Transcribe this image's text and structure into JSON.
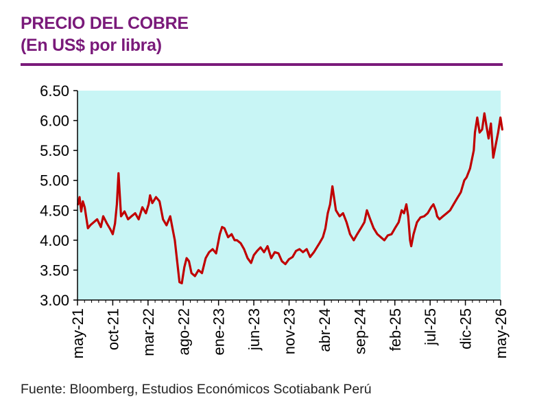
{
  "header": {
    "title": "PRECIO DEL COBRE",
    "subtitle": "(En US$ por libra)"
  },
  "source": "Fuente: Bloomberg, Estudios Económicos Scotiabank Perú",
  "colors": {
    "title": "#7a1a7a",
    "line": "#c00000",
    "plot_bg": "#c8f5f5",
    "axis": "#000000"
  },
  "chart_data": {
    "type": "line",
    "title": "PRECIO DEL COBRE",
    "subtitle": "(En US$ por libra)",
    "ylim": [
      3.0,
      6.5
    ],
    "yticks": [
      "3.00",
      "3.50",
      "4.00",
      "4.50",
      "5.00",
      "5.50",
      "6.00",
      "6.50"
    ],
    "xticks": [
      "may-21",
      "oct-21",
      "mar-22",
      "ago-22",
      "ene-23",
      "jun-23",
      "nov-23",
      "abr-24",
      "sep-24",
      "feb-25",
      "jul-25",
      "dic-25",
      "may-26"
    ],
    "grid": false,
    "series": [
      {
        "x": [
          "2021-05-03",
          "2021-05-10",
          "2021-05-17",
          "2021-05-24",
          "2021-06-01",
          "2021-06-15",
          "2021-06-25",
          "2021-07-10",
          "2021-07-25",
          "2021-08-10",
          "2021-08-20",
          "2021-09-05",
          "2021-09-20",
          "2021-09-30",
          "2021-10-10",
          "2021-10-18",
          "2021-10-25",
          "2021-11-05",
          "2021-11-20",
          "2021-12-05",
          "2021-12-20",
          "2022-01-05",
          "2022-01-20",
          "2022-02-05",
          "2022-02-20",
          "2022-03-04",
          "2022-03-10",
          "2022-03-20",
          "2022-04-05",
          "2022-04-20",
          "2022-05-05",
          "2022-05-20",
          "2022-06-05",
          "2022-06-15",
          "2022-06-25",
          "2022-07-05",
          "2022-07-15",
          "2022-07-25",
          "2022-08-05",
          "2022-08-15",
          "2022-08-25",
          "2022-09-05",
          "2022-09-20",
          "2022-10-05",
          "2022-10-20",
          "2022-11-05",
          "2022-11-20",
          "2022-12-05",
          "2022-12-20",
          "2023-01-05",
          "2023-01-15",
          "2023-01-25",
          "2023-02-10",
          "2023-02-25",
          "2023-03-10",
          "2023-03-20",
          "2023-04-05",
          "2023-04-20",
          "2023-05-05",
          "2023-05-20",
          "2023-06-01",
          "2023-06-15",
          "2023-06-30",
          "2023-07-15",
          "2023-07-30",
          "2023-08-15",
          "2023-08-30",
          "2023-09-15",
          "2023-09-30",
          "2023-10-15",
          "2023-10-30",
          "2023-11-15",
          "2023-11-30",
          "2023-12-15",
          "2023-12-30",
          "2024-01-15",
          "2024-01-30",
          "2024-02-15",
          "2024-02-28",
          "2024-03-10",
          "2024-03-25",
          "2024-04-05",
          "2024-04-15",
          "2024-04-25",
          "2024-05-05",
          "2024-05-20",
          "2024-06-05",
          "2024-06-20",
          "2024-07-05",
          "2024-07-20",
          "2024-08-05",
          "2024-08-20",
          "2024-09-05",
          "2024-09-20",
          "2024-10-01",
          "2024-10-15",
          "2024-10-30",
          "2024-11-15",
          "2024-11-30",
          "2024-12-15",
          "2024-12-30",
          "2025-01-15",
          "2025-01-30",
          "2025-02-15",
          "2025-02-28",
          "2025-03-10",
          "2025-03-20",
          "2025-03-28",
          "2025-04-05",
          "2025-04-10",
          "2025-04-20",
          "2025-05-05",
          "2025-05-20",
          "2025-06-05",
          "2025-06-20",
          "2025-07-05",
          "2025-07-15",
          "2025-07-25",
          "2025-07-31",
          "2025-08-10",
          "2025-08-25",
          "2025-09-10",
          "2025-09-25",
          "2025-10-10",
          "2025-10-25",
          "2025-11-10",
          "2025-11-25",
          "2025-12-05",
          "2025-12-20",
          "2026-01-05",
          "2026-01-10",
          "2026-01-20",
          "2026-01-30",
          "2026-02-10",
          "2026-02-20",
          "2026-03-01",
          "2026-03-10",
          "2026-03-20",
          "2026-03-30",
          "2026-04-10",
          "2026-04-20",
          "2026-04-30",
          "2026-05-08"
        ],
        "values": [
          4.6,
          4.72,
          4.48,
          4.65,
          4.55,
          4.2,
          4.25,
          4.3,
          4.35,
          4.22,
          4.4,
          4.28,
          4.18,
          4.1,
          4.28,
          4.6,
          5.12,
          4.4,
          4.48,
          4.35,
          4.4,
          4.45,
          4.35,
          4.55,
          4.45,
          4.6,
          4.75,
          4.62,
          4.72,
          4.65,
          4.35,
          4.25,
          4.4,
          4.2,
          4.0,
          3.65,
          3.3,
          3.28,
          3.55,
          3.7,
          3.65,
          3.45,
          3.4,
          3.5,
          3.45,
          3.7,
          3.8,
          3.85,
          3.78,
          4.1,
          4.22,
          4.2,
          4.05,
          4.1,
          4.0,
          4.0,
          3.95,
          3.85,
          3.7,
          3.62,
          3.75,
          3.82,
          3.88,
          3.8,
          3.9,
          3.7,
          3.8,
          3.78,
          3.65,
          3.6,
          3.68,
          3.72,
          3.82,
          3.85,
          3.8,
          3.85,
          3.72,
          3.8,
          3.88,
          3.95,
          4.05,
          4.2,
          4.45,
          4.6,
          4.9,
          4.5,
          4.4,
          4.45,
          4.3,
          4.1,
          4.0,
          4.1,
          4.2,
          4.3,
          4.5,
          4.35,
          4.2,
          4.1,
          4.05,
          4.0,
          4.08,
          4.1,
          4.2,
          4.3,
          4.5,
          4.45,
          4.6,
          4.4,
          4.0,
          3.9,
          4.1,
          4.3,
          4.38,
          4.4,
          4.45,
          4.55,
          4.6,
          4.5,
          4.4,
          4.35,
          4.4,
          4.45,
          4.5,
          4.6,
          4.7,
          4.8,
          5.0,
          5.05,
          5.2,
          5.5,
          5.8,
          6.05,
          5.8,
          5.85,
          6.12,
          5.9,
          5.7,
          5.95,
          5.38,
          5.6,
          5.8,
          6.05,
          5.85
        ]
      }
    ]
  }
}
